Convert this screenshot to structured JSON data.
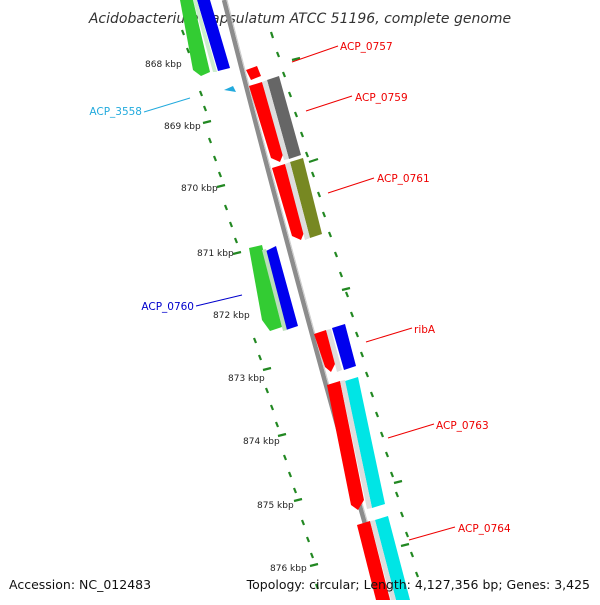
{
  "title": "Acidobacterium capsulatum ATCC 51196, complete genome",
  "footer": {
    "accession": "Accession: NC_012483",
    "summary": "Topology: circular; Length: 4,127,356 bp; Genes: 3,425"
  },
  "ruler": {
    "unit": "kbp",
    "labels": [
      "868 kbp",
      "869 kbp",
      "870 kbp",
      "871 kbp",
      "872 kbp",
      "873 kbp",
      "874 kbp",
      "875 kbp",
      "876 kbp"
    ]
  },
  "gene_labels": [
    {
      "name": "ACP_0757",
      "color": "#ee0000"
    },
    {
      "name": "ACP_0759",
      "color": "#ee0000"
    },
    {
      "name": "ACP_0761",
      "color": "#ee0000"
    },
    {
      "name": "ribA",
      "color": "#ee0000"
    },
    {
      "name": "ACP_0763",
      "color": "#ee0000"
    },
    {
      "name": "ACP_0764",
      "color": "#ee0000"
    },
    {
      "name": "ACP_3558",
      "color": "#22aadd"
    },
    {
      "name": "ACP_0760",
      "color": "#0000cc"
    }
  ],
  "colors": {
    "backbone": "#8c8c8c",
    "cds": "#ff0000",
    "cog_grey": "#666666",
    "cog_olive": "#778822",
    "cog_cyan": "#00e5e5",
    "cog_blue": "#0000ee",
    "cds_reverse": "#33cc33",
    "ticks": "#228822",
    "small_feature": "#22aadd"
  }
}
